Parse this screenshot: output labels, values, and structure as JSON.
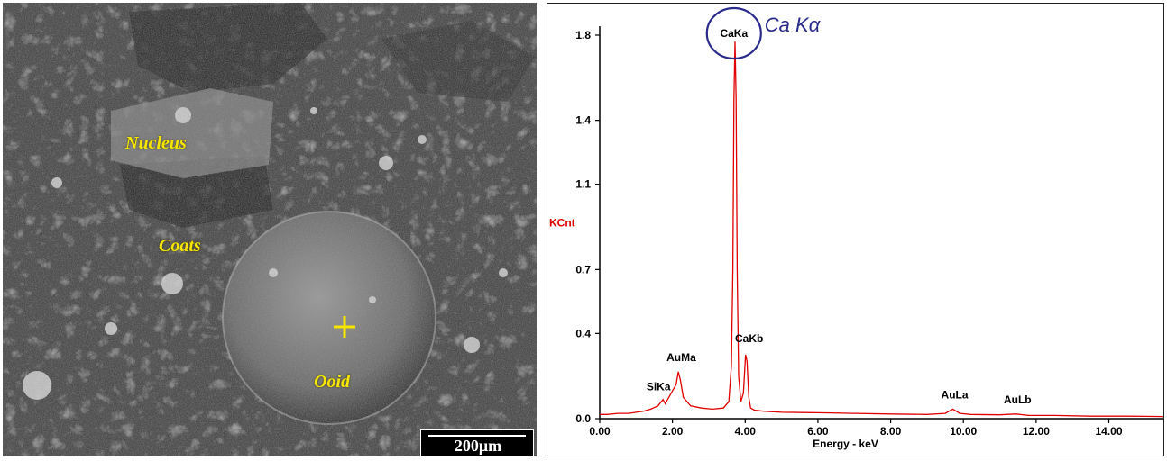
{
  "sem_image": {
    "labels": {
      "nucleus": "Nucleus",
      "coats": "Coats",
      "ooid": "Ooid",
      "scale_bar": "200μm"
    },
    "marker_color": "#f7e600"
  },
  "chart_data": {
    "type": "line",
    "title": "",
    "xlabel": "Energy - keV",
    "ylabel": "KCnt",
    "xlim": [
      0,
      15.5
    ],
    "ylim": [
      0,
      1.8
    ],
    "x_ticks": [
      "0.00",
      "2.00",
      "4.00",
      "6.00",
      "8.00",
      "10.00",
      "12.00",
      "14.00"
    ],
    "y_ticks": [
      "0.0",
      "0.4",
      "0.7",
      "1.1",
      "1.4",
      "1.8"
    ],
    "grid": false,
    "series": [
      {
        "color": "#e00000",
        "x": [
          0.0,
          0.2,
          0.5,
          0.8,
          1.0,
          1.2,
          1.4,
          1.6,
          1.74,
          1.8,
          1.9,
          2.0,
          2.1,
          2.16,
          2.22,
          2.3,
          2.5,
          2.8,
          3.1,
          3.4,
          3.55,
          3.62,
          3.66,
          3.69,
          3.72,
          3.75,
          3.78,
          3.82,
          3.88,
          3.95,
          4.01,
          4.05,
          4.1,
          4.15,
          4.25,
          4.5,
          5.0,
          6.0,
          7.0,
          8.0,
          9.0,
          9.5,
          9.71,
          9.9,
          10.2,
          11.0,
          11.44,
          11.8,
          12.5,
          13.5,
          14.5,
          15.5
        ],
        "y": [
          0.02,
          0.02,
          0.025,
          0.025,
          0.03,
          0.035,
          0.045,
          0.06,
          0.09,
          0.07,
          0.1,
          0.13,
          0.16,
          0.22,
          0.18,
          0.1,
          0.06,
          0.05,
          0.045,
          0.05,
          0.08,
          0.25,
          0.7,
          1.5,
          1.77,
          1.5,
          0.7,
          0.2,
          0.08,
          0.12,
          0.3,
          0.27,
          0.1,
          0.05,
          0.04,
          0.035,
          0.03,
          0.028,
          0.025,
          0.022,
          0.02,
          0.025,
          0.045,
          0.025,
          0.02,
          0.018,
          0.022,
          0.015,
          0.015,
          0.012,
          0.012,
          0.01
        ]
      }
    ],
    "peak_labels": [
      {
        "label": "CaKa",
        "x": 3.69,
        "y": 1.77
      },
      {
        "label": "CaKb",
        "x": 4.01,
        "y": 0.3
      },
      {
        "label": "AuMa",
        "x": 2.12,
        "y": 0.22
      },
      {
        "label": "SiKa",
        "x": 1.74,
        "y": 0.09
      },
      {
        "label": "AuLa",
        "x": 9.71,
        "y": 0.045
      },
      {
        "label": "AuLb",
        "x": 11.44,
        "y": 0.022
      }
    ],
    "annotation": {
      "text": "Ca Kα",
      "color": "#2b2b8c"
    }
  }
}
